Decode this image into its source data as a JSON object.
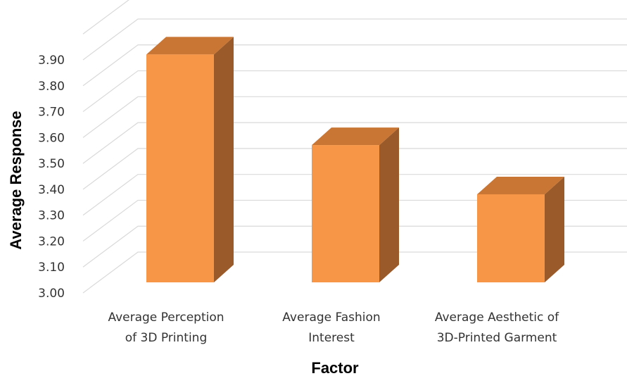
{
  "chart_data": {
    "type": "bar",
    "style": "3d-column",
    "title": "",
    "xlabel": "Factor",
    "ylabel": "Average Response",
    "categories": [
      [
        "Average Perception",
        "of 3D Printing"
      ],
      [
        "Average Fashion",
        "Interest"
      ],
      [
        "Average Aesthetic of",
        "3D-Printed Garment"
      ]
    ],
    "values": [
      3.88,
      3.53,
      3.34
    ],
    "ylim": [
      3.0,
      3.9
    ],
    "yticks": [
      "3.00",
      "3.10",
      "3.20",
      "3.30",
      "3.40",
      "3.50",
      "3.60",
      "3.70",
      "3.80",
      "3.90"
    ],
    "grid": true,
    "legend": "none",
    "colors": {
      "bar_front": "#f79646",
      "bar_top": "#c97635",
      "bar_side": "#9a5a2a",
      "grid": "#d9d9d9"
    }
  }
}
